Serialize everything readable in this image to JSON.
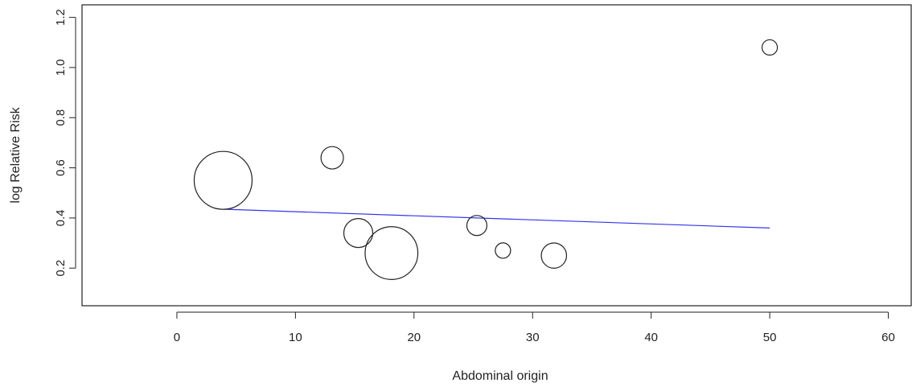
{
  "chart_data": {
    "type": "scatter",
    "title": "",
    "xlabel": "Abdominal origin",
    "ylabel": "log Relative Risk",
    "xlim": [
      -8,
      62
    ],
    "ylim": [
      0.05,
      1.25
    ],
    "x_ticks": [
      0,
      10,
      20,
      30,
      40,
      50,
      60
    ],
    "y_ticks": [
      0.2,
      0.4,
      0.6,
      0.8,
      1.0,
      1.2
    ],
    "x_tick_labels": [
      "0",
      "10",
      "20",
      "30",
      "40",
      "50",
      "60"
    ],
    "y_tick_labels": [
      "0.2",
      "0.4",
      "0.6",
      "0.8",
      "1.0",
      "1.2"
    ],
    "grid": false,
    "points": [
      {
        "x": 3.9,
        "y": 0.55,
        "size": 1.0
      },
      {
        "x": 13.1,
        "y": 0.64,
        "size": 0.15
      },
      {
        "x": 15.3,
        "y": 0.34,
        "size": 0.25
      },
      {
        "x": 18.1,
        "y": 0.26,
        "size": 0.83
      },
      {
        "x": 25.3,
        "y": 0.37,
        "size": 0.12
      },
      {
        "x": 27.5,
        "y": 0.27,
        "size": 0.07
      },
      {
        "x": 31.8,
        "y": 0.25,
        "size": 0.19
      },
      {
        "x": 50.0,
        "y": 1.08,
        "size": 0.07
      }
    ],
    "fit_line": {
      "x": [
        3.9,
        50.0
      ],
      "y": [
        0.435,
        0.36
      ],
      "color": "#3333ee"
    },
    "point_color": "#222222"
  }
}
